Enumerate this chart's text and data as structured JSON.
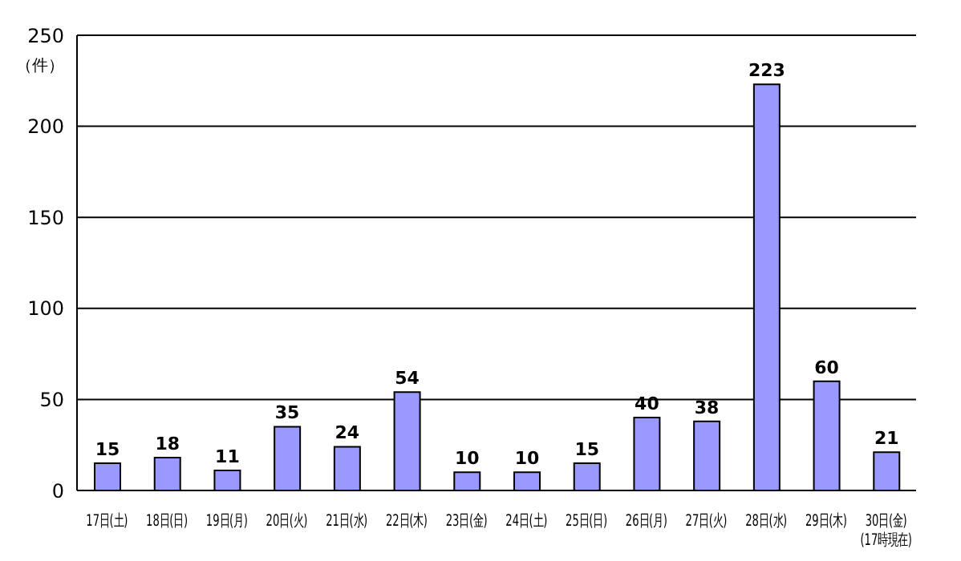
{
  "chart_data": {
    "type": "bar",
    "ylabel": "（件）",
    "categories": [
      "17日(土)",
      "18日(日)",
      "19日(月)",
      "20日(火)",
      "21日(水)",
      "22日(木)",
      "23日(金)",
      "24日(土)",
      "25日(日)",
      "26日(月)",
      "27日(火)",
      "28日(水)",
      "29日(木)",
      "30日(金)\n(17時現在)"
    ],
    "values": [
      15,
      18,
      11,
      35,
      24,
      54,
      10,
      10,
      15,
      40,
      38,
      223,
      60,
      21
    ],
    "color": "#9999ff",
    "ylim": [
      0,
      250
    ],
    "yticks": [
      0,
      50,
      100,
      150,
      200,
      250
    ],
    "grid": "y",
    "data_labels": true
  }
}
